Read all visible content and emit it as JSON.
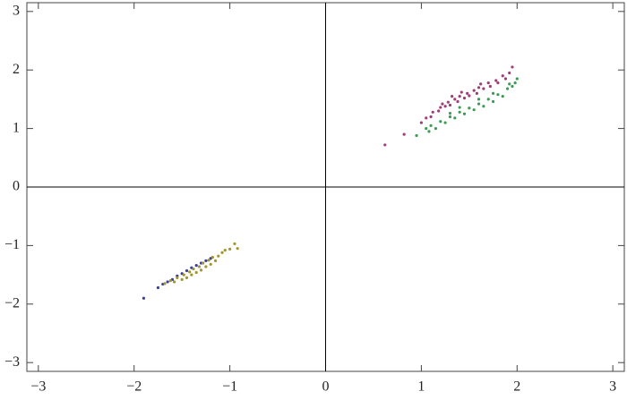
{
  "chart_data": {
    "type": "scatter",
    "xlim": [
      -3.12,
      3.12
    ],
    "ylim": [
      -3.15,
      3.15
    ],
    "xticks": [
      {
        "value": -3,
        "label": "−3"
      },
      {
        "value": -2,
        "label": "−2"
      },
      {
        "value": -1,
        "label": "−1"
      },
      0,
      1,
      2,
      3
    ],
    "yticks": [
      {
        "value": -3,
        "label": "−3"
      },
      {
        "value": -2,
        "label": "−2"
      },
      {
        "value": -1,
        "label": "−1"
      },
      0,
      1,
      2,
      3
    ],
    "axes_through_origin": true,
    "series": [
      {
        "color": "#9c3f77",
        "x": [
          0.62,
          0.82,
          1.0,
          1.05,
          1.1,
          1.12,
          1.18,
          1.2,
          1.25,
          1.28,
          1.3,
          1.35,
          1.38,
          1.4,
          1.45,
          1.48,
          1.5,
          1.55,
          1.58,
          1.6,
          1.65,
          1.7,
          1.72,
          1.78,
          1.8,
          1.85,
          1.88,
          1.92,
          1.95,
          1.32,
          1.22,
          1.42,
          1.62
        ],
        "values": [
          0.72,
          0.9,
          1.1,
          1.18,
          1.2,
          1.28,
          1.3,
          1.36,
          1.38,
          1.45,
          1.4,
          1.5,
          1.46,
          1.55,
          1.52,
          1.6,
          1.56,
          1.65,
          1.6,
          1.7,
          1.68,
          1.78,
          1.72,
          1.82,
          1.78,
          1.9,
          1.85,
          1.95,
          2.05,
          1.55,
          1.42,
          1.62,
          1.76
        ]
      },
      {
        "color": "#3d9b55",
        "x": [
          0.95,
          1.05,
          1.1,
          1.15,
          1.2,
          1.25,
          1.3,
          1.35,
          1.4,
          1.45,
          1.5,
          1.55,
          1.6,
          1.65,
          1.7,
          1.75,
          1.8,
          1.85,
          1.9,
          1.95,
          2.0,
          1.98,
          1.92,
          1.4,
          1.6,
          1.75,
          1.3,
          1.08
        ],
        "values": [
          0.88,
          1.0,
          1.05,
          1.0,
          1.12,
          1.1,
          1.2,
          1.18,
          1.28,
          1.25,
          1.35,
          1.32,
          1.42,
          1.38,
          1.5,
          1.46,
          1.58,
          1.55,
          1.68,
          1.72,
          1.85,
          1.78,
          1.76,
          1.36,
          1.5,
          1.6,
          1.26,
          0.95
        ]
      },
      {
        "color": "#3c3fa0",
        "x": [
          -1.9,
          -1.75,
          -1.7,
          -1.65,
          -1.6,
          -1.55,
          -1.5,
          -1.45,
          -1.4,
          -1.35,
          -1.3,
          -1.25,
          -1.2
        ],
        "values": [
          -1.9,
          -1.72,
          -1.66,
          -1.62,
          -1.58,
          -1.52,
          -1.48,
          -1.43,
          -1.38,
          -1.34,
          -1.3,
          -1.26,
          -1.22
        ]
      },
      {
        "color": "#a0962e",
        "x": [
          -1.68,
          -1.62,
          -1.58,
          -1.55,
          -1.5,
          -1.48,
          -1.45,
          -1.42,
          -1.4,
          -1.38,
          -1.35,
          -1.32,
          -1.3,
          -1.28,
          -1.25,
          -1.22,
          -1.2,
          -1.18,
          -1.15,
          -1.12,
          -1.08,
          -1.05,
          -1.0,
          -0.95,
          -0.92
        ],
        "values": [
          -1.65,
          -1.6,
          -1.62,
          -1.55,
          -1.58,
          -1.5,
          -1.55,
          -1.45,
          -1.5,
          -1.4,
          -1.46,
          -1.36,
          -1.42,
          -1.3,
          -1.36,
          -1.25,
          -1.32,
          -1.2,
          -1.26,
          -1.18,
          -1.12,
          -1.08,
          -1.06,
          -0.97,
          -1.05
        ]
      }
    ]
  }
}
